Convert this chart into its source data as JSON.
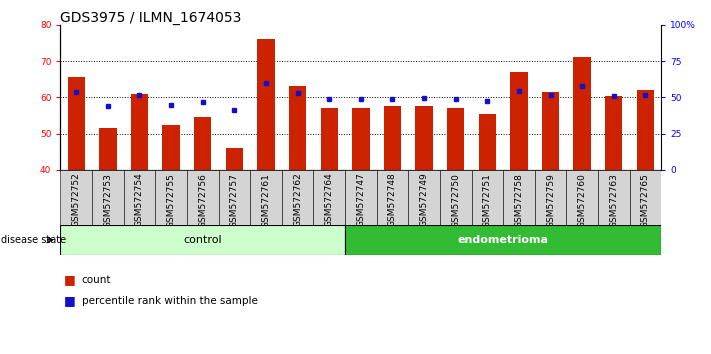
{
  "title": "GDS3975 / ILMN_1674053",
  "samples": [
    "GSM572752",
    "GSM572753",
    "GSM572754",
    "GSM572755",
    "GSM572756",
    "GSM572757",
    "GSM572761",
    "GSM572762",
    "GSM572764",
    "GSM572747",
    "GSM572748",
    "GSM572749",
    "GSM572750",
    "GSM572751",
    "GSM572758",
    "GSM572759",
    "GSM572760",
    "GSM572763",
    "GSM572765"
  ],
  "counts": [
    65.5,
    51.5,
    61.0,
    52.5,
    54.5,
    46.0,
    76.0,
    63.0,
    57.0,
    57.0,
    57.5,
    57.5,
    57.0,
    55.5,
    67.0,
    61.5,
    71.0,
    60.5,
    62.0
  ],
  "percentile_ranks": [
    54.0,
    44.0,
    51.5,
    45.0,
    47.0,
    41.0,
    60.0,
    53.0,
    49.0,
    49.0,
    49.0,
    49.5,
    49.0,
    47.5,
    54.5,
    51.5,
    57.5,
    51.0,
    51.5
  ],
  "control_count": 9,
  "endometrioma_count": 10,
  "ylim_left": [
    40,
    80
  ],
  "ylim_right": [
    0,
    100
  ],
  "yticks_left": [
    40,
    50,
    60,
    70,
    80
  ],
  "yticks_right": [
    0,
    25,
    50,
    75,
    100
  ],
  "ytick_labels_right": [
    "0",
    "25",
    "50",
    "75",
    "100%"
  ],
  "bar_color": "#cc2200",
  "percentile_color": "#1111cc",
  "bar_width": 0.55,
  "background_plot": "#ffffff",
  "control_label": "control",
  "endometrioma_label": "endometrioma",
  "control_color": "#ccffcc",
  "endometrioma_color": "#33bb33",
  "disease_state_label": "disease state",
  "legend_count": "count",
  "legend_percentile": "percentile rank within the sample",
  "title_fontsize": 10,
  "tick_fontsize": 6.5,
  "axis_label_fontsize": 7
}
